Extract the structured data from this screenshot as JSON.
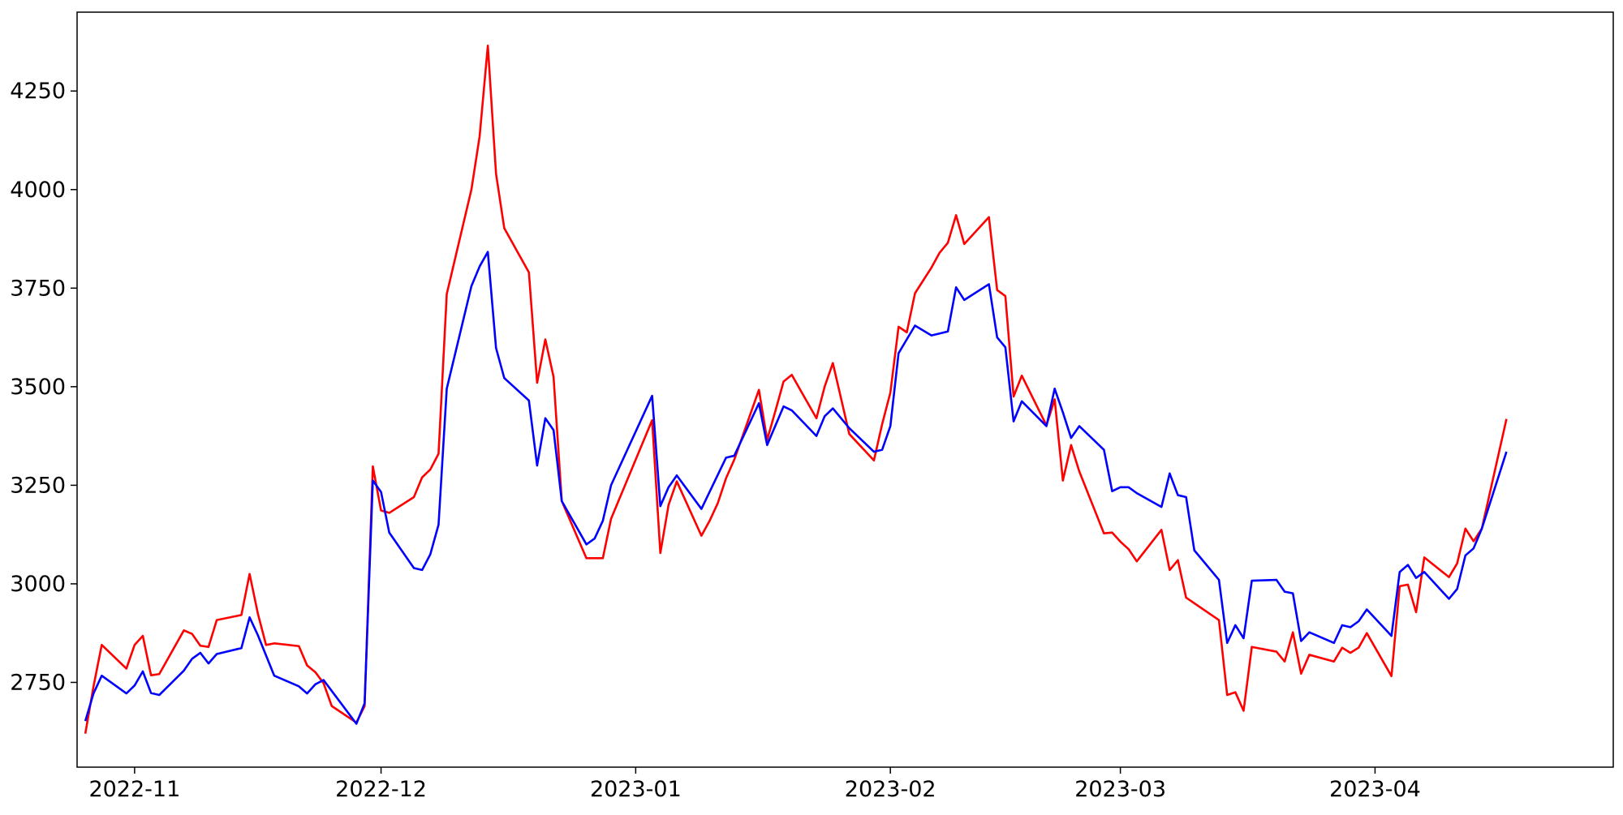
{
  "chart_data": {
    "type": "line",
    "title": "",
    "xlabel": "",
    "ylabel": "",
    "x_domain": [
      "2022-10-25",
      "2023-04-30"
    ],
    "ylim": [
      2535,
      4450
    ],
    "grid": false,
    "legend": "none",
    "x_ticks": [
      {
        "date": "2022-11-01",
        "label": "2022-11"
      },
      {
        "date": "2022-12-01",
        "label": "2022-12"
      },
      {
        "date": "2023-01-01",
        "label": "2023-01"
      },
      {
        "date": "2023-02-01",
        "label": "2023-02"
      },
      {
        "date": "2023-03-01",
        "label": "2023-03"
      },
      {
        "date": "2023-04-01",
        "label": "2023-04"
      }
    ],
    "y_ticks": [
      {
        "value": 2750,
        "label": "2750"
      },
      {
        "value": 3000,
        "label": "3000"
      },
      {
        "value": 3250,
        "label": "3250"
      },
      {
        "value": 3500,
        "label": "3500"
      },
      {
        "value": 3750,
        "label": "3750"
      },
      {
        "value": 4000,
        "label": "4000"
      },
      {
        "value": 4250,
        "label": "4250"
      }
    ],
    "series": [
      {
        "color": "#ff0000",
        "points": [
          [
            "2022-10-26",
            2620
          ],
          [
            "2022-10-27",
            2740
          ],
          [
            "2022-10-28",
            2845
          ],
          [
            "2022-10-31",
            2785
          ],
          [
            "2022-11-01",
            2845
          ],
          [
            "2022-11-02",
            2868
          ],
          [
            "2022-11-03",
            2768
          ],
          [
            "2022-11-04",
            2771
          ],
          [
            "2022-11-07",
            2882
          ],
          [
            "2022-11-08",
            2873
          ],
          [
            "2022-11-09",
            2843
          ],
          [
            "2022-11-10",
            2840
          ],
          [
            "2022-11-11",
            2908
          ],
          [
            "2022-11-14",
            2921
          ],
          [
            "2022-11-15",
            3025
          ],
          [
            "2022-11-16",
            2925
          ],
          [
            "2022-11-17",
            2845
          ],
          [
            "2022-11-18",
            2849
          ],
          [
            "2022-11-21",
            2842
          ],
          [
            "2022-11-22",
            2793
          ],
          [
            "2022-11-23",
            2776
          ],
          [
            "2022-11-24",
            2748
          ],
          [
            "2022-11-25",
            2690
          ],
          [
            "2022-11-28",
            2648
          ],
          [
            "2022-11-29",
            2690
          ],
          [
            "2022-11-30",
            3298
          ],
          [
            "2022-12-01",
            3186
          ],
          [
            "2022-12-02",
            3180
          ],
          [
            "2022-12-05",
            3220
          ],
          [
            "2022-12-06",
            3270
          ],
          [
            "2022-12-07",
            3290
          ],
          [
            "2022-12-08",
            3330
          ],
          [
            "2022-12-09",
            3735
          ],
          [
            "2022-12-12",
            4000
          ],
          [
            "2022-12-13",
            4135
          ],
          [
            "2022-12-14",
            4365
          ],
          [
            "2022-12-15",
            4040
          ],
          [
            "2022-12-16",
            3902
          ],
          [
            "2022-12-19",
            3790
          ],
          [
            "2022-12-20",
            3510
          ],
          [
            "2022-12-21",
            3620
          ],
          [
            "2022-12-22",
            3525
          ],
          [
            "2022-12-23",
            3210
          ],
          [
            "2022-12-26",
            3065
          ],
          [
            "2022-12-27",
            3065
          ],
          [
            "2022-12-28",
            3065
          ],
          [
            "2022-12-29",
            3165
          ],
          [
            "2023-01-03",
            3415
          ],
          [
            "2023-01-04",
            3078
          ],
          [
            "2023-01-05",
            3200
          ],
          [
            "2023-01-06",
            3260
          ],
          [
            "2023-01-09",
            3122
          ],
          [
            "2023-01-10",
            3160
          ],
          [
            "2023-01-11",
            3205
          ],
          [
            "2023-01-12",
            3268
          ],
          [
            "2023-01-13",
            3315
          ],
          [
            "2023-01-16",
            3492
          ],
          [
            "2023-01-17",
            3365
          ],
          [
            "2023-01-18",
            3438
          ],
          [
            "2023-01-19",
            3513
          ],
          [
            "2023-01-20",
            3530
          ],
          [
            "2023-01-23",
            3420
          ],
          [
            "2023-01-24",
            3500
          ],
          [
            "2023-01-25",
            3560
          ],
          [
            "2023-01-27",
            3380
          ],
          [
            "2023-01-30",
            3313
          ],
          [
            "2023-01-31",
            3405
          ],
          [
            "2023-02-01",
            3485
          ],
          [
            "2023-02-02",
            3652
          ],
          [
            "2023-02-03",
            3638
          ],
          [
            "2023-02-04",
            3737
          ],
          [
            "2023-02-06",
            3802
          ],
          [
            "2023-02-07",
            3840
          ],
          [
            "2023-02-08",
            3865
          ],
          [
            "2023-02-09",
            3935
          ],
          [
            "2023-02-10",
            3862
          ],
          [
            "2023-02-13",
            3930
          ],
          [
            "2023-02-14",
            3745
          ],
          [
            "2023-02-15",
            3730
          ],
          [
            "2023-02-16",
            3475
          ],
          [
            "2023-02-17",
            3528
          ],
          [
            "2023-02-20",
            3402
          ],
          [
            "2023-02-21",
            3468
          ],
          [
            "2023-02-22",
            3262
          ],
          [
            "2023-02-23",
            3352
          ],
          [
            "2023-02-24",
            3285
          ],
          [
            "2023-02-27",
            3128
          ],
          [
            "2023-02-28",
            3130
          ],
          [
            "2023-03-01",
            3107
          ],
          [
            "2023-03-02",
            3088
          ],
          [
            "2023-03-03",
            3057
          ],
          [
            "2023-03-06",
            3137
          ],
          [
            "2023-03-07",
            3035
          ],
          [
            "2023-03-08",
            3060
          ],
          [
            "2023-03-09",
            2965
          ],
          [
            "2023-03-13",
            2908
          ],
          [
            "2023-03-14",
            2718
          ],
          [
            "2023-03-15",
            2725
          ],
          [
            "2023-03-16",
            2678
          ],
          [
            "2023-03-17",
            2840
          ],
          [
            "2023-03-20",
            2828
          ],
          [
            "2023-03-21",
            2803
          ],
          [
            "2023-03-22",
            2877
          ],
          [
            "2023-03-23",
            2772
          ],
          [
            "2023-03-24",
            2820
          ],
          [
            "2023-03-27",
            2803
          ],
          [
            "2023-03-28",
            2838
          ],
          [
            "2023-03-29",
            2825
          ],
          [
            "2023-03-30",
            2838
          ],
          [
            "2023-03-31",
            2875
          ],
          [
            "2023-04-03",
            2766
          ],
          [
            "2023-04-04",
            2994
          ],
          [
            "2023-04-05",
            2998
          ],
          [
            "2023-04-06",
            2928
          ],
          [
            "2023-04-07",
            3067
          ],
          [
            "2023-04-10",
            3017
          ],
          [
            "2023-04-11",
            3052
          ],
          [
            "2023-04-12",
            3140
          ],
          [
            "2023-04-13",
            3108
          ],
          [
            "2023-04-14",
            3140
          ],
          [
            "2023-04-17",
            3418
          ]
        ]
      },
      {
        "color": "#0000ff",
        "points": [
          [
            "2022-10-26",
            2652
          ],
          [
            "2022-10-27",
            2722
          ],
          [
            "2022-10-28",
            2767
          ],
          [
            "2022-10-31",
            2722
          ],
          [
            "2022-11-01",
            2742
          ],
          [
            "2022-11-02",
            2778
          ],
          [
            "2022-11-03",
            2723
          ],
          [
            "2022-11-04",
            2718
          ],
          [
            "2022-11-07",
            2780
          ],
          [
            "2022-11-08",
            2810
          ],
          [
            "2022-11-09",
            2825
          ],
          [
            "2022-11-10",
            2798
          ],
          [
            "2022-11-11",
            2822
          ],
          [
            "2022-11-14",
            2837
          ],
          [
            "2022-11-15",
            2915
          ],
          [
            "2022-11-16",
            2870
          ],
          [
            "2022-11-18",
            2767
          ],
          [
            "2022-11-21",
            2740
          ],
          [
            "2022-11-22",
            2722
          ],
          [
            "2022-11-23",
            2745
          ],
          [
            "2022-11-24",
            2756
          ],
          [
            "2022-11-28",
            2645
          ],
          [
            "2022-11-29",
            2697
          ],
          [
            "2022-11-30",
            3262
          ],
          [
            "2022-12-01",
            3233
          ],
          [
            "2022-12-02",
            3130
          ],
          [
            "2022-12-05",
            3040
          ],
          [
            "2022-12-06",
            3035
          ],
          [
            "2022-12-07",
            3075
          ],
          [
            "2022-12-08",
            3150
          ],
          [
            "2022-12-09",
            3495
          ],
          [
            "2022-12-12",
            3755
          ],
          [
            "2022-12-13",
            3805
          ],
          [
            "2022-12-14",
            3842
          ],
          [
            "2022-12-15",
            3598
          ],
          [
            "2022-12-16",
            3522
          ],
          [
            "2022-12-19",
            3465
          ],
          [
            "2022-12-20",
            3300
          ],
          [
            "2022-12-21",
            3420
          ],
          [
            "2022-12-22",
            3390
          ],
          [
            "2022-12-23",
            3210
          ],
          [
            "2022-12-26",
            3100
          ],
          [
            "2022-12-27",
            3115
          ],
          [
            "2022-12-28",
            3160
          ],
          [
            "2022-12-29",
            3250
          ],
          [
            "2023-01-03",
            3477
          ],
          [
            "2023-01-04",
            3197
          ],
          [
            "2023-01-05",
            3245
          ],
          [
            "2023-01-06",
            3275
          ],
          [
            "2023-01-09",
            3190
          ],
          [
            "2023-01-12",
            3320
          ],
          [
            "2023-01-13",
            3325
          ],
          [
            "2023-01-16",
            3458
          ],
          [
            "2023-01-17",
            3352
          ],
          [
            "2023-01-19",
            3450
          ],
          [
            "2023-01-20",
            3440
          ],
          [
            "2023-01-23",
            3375
          ],
          [
            "2023-01-24",
            3425
          ],
          [
            "2023-01-25",
            3445
          ],
          [
            "2023-01-27",
            3395
          ],
          [
            "2023-01-30",
            3335
          ],
          [
            "2023-01-31",
            3340
          ],
          [
            "2023-02-01",
            3400
          ],
          [
            "2023-02-02",
            3585
          ],
          [
            "2023-02-03",
            3620
          ],
          [
            "2023-02-04",
            3655
          ],
          [
            "2023-02-06",
            3630
          ],
          [
            "2023-02-07",
            3635
          ],
          [
            "2023-02-08",
            3640
          ],
          [
            "2023-02-09",
            3752
          ],
          [
            "2023-02-10",
            3720
          ],
          [
            "2023-02-13",
            3760
          ],
          [
            "2023-02-14",
            3625
          ],
          [
            "2023-02-15",
            3600
          ],
          [
            "2023-02-16",
            3412
          ],
          [
            "2023-02-17",
            3463
          ],
          [
            "2023-02-20",
            3400
          ],
          [
            "2023-02-21",
            3495
          ],
          [
            "2023-02-22",
            3435
          ],
          [
            "2023-02-23",
            3370
          ],
          [
            "2023-02-24",
            3400
          ],
          [
            "2023-02-27",
            3340
          ],
          [
            "2023-02-28",
            3235
          ],
          [
            "2023-03-01",
            3245
          ],
          [
            "2023-03-02",
            3245
          ],
          [
            "2023-03-03",
            3230
          ],
          [
            "2023-03-06",
            3195
          ],
          [
            "2023-03-07",
            3280
          ],
          [
            "2023-03-08",
            3225
          ],
          [
            "2023-03-09",
            3220
          ],
          [
            "2023-03-10",
            3085
          ],
          [
            "2023-03-13",
            3010
          ],
          [
            "2023-03-14",
            2850
          ],
          [
            "2023-03-15",
            2895
          ],
          [
            "2023-03-16",
            2862
          ],
          [
            "2023-03-17",
            3008
          ],
          [
            "2023-03-20",
            3010
          ],
          [
            "2023-03-21",
            2980
          ],
          [
            "2023-03-22",
            2976
          ],
          [
            "2023-03-23",
            2855
          ],
          [
            "2023-03-24",
            2877
          ],
          [
            "2023-03-27",
            2850
          ],
          [
            "2023-03-28",
            2895
          ],
          [
            "2023-03-29",
            2890
          ],
          [
            "2023-03-30",
            2905
          ],
          [
            "2023-03-31",
            2935
          ],
          [
            "2023-04-03",
            2868
          ],
          [
            "2023-04-04",
            3030
          ],
          [
            "2023-04-05",
            3048
          ],
          [
            "2023-04-06",
            3015
          ],
          [
            "2023-04-07",
            3030
          ],
          [
            "2023-04-10",
            2962
          ],
          [
            "2023-04-11",
            2987
          ],
          [
            "2023-04-12",
            3072
          ],
          [
            "2023-04-13",
            3090
          ],
          [
            "2023-04-14",
            3140
          ],
          [
            "2023-04-17",
            3335
          ]
        ]
      }
    ]
  }
}
